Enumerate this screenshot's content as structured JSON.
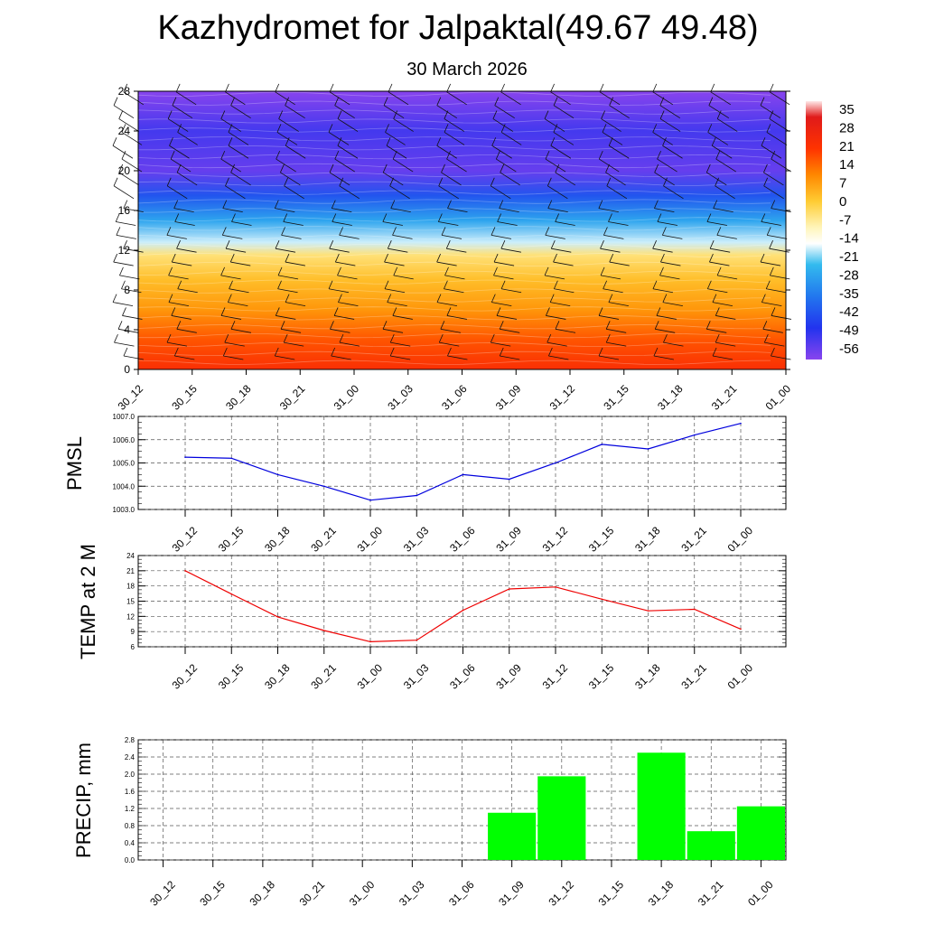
{
  "title": "Kazhydromet for Jalpaktal(49.67 49.48)",
  "subtitle": "30 March 2026",
  "time_labels": [
    "30_12",
    "30_15",
    "30_18",
    "30_21",
    "31_00",
    "31_03",
    "31_06",
    "31_09",
    "31_12",
    "31_15",
    "31_18",
    "31_21",
    "01_00"
  ],
  "chart_data": [
    {
      "type": "heatmap",
      "name": "cross-section",
      "title": "",
      "xlabel": "",
      "ylabel": "",
      "x": [
        "30_12",
        "30_15",
        "30_18",
        "30_21",
        "31_00",
        "31_03",
        "31_06",
        "31_09",
        "31_12",
        "31_15",
        "31_18",
        "31_21",
        "01_00"
      ],
      "yticks": [
        0,
        4,
        8,
        12,
        16,
        20,
        24,
        28
      ],
      "ylim": [
        0,
        28
      ],
      "colorbar_labels": [
        "35",
        "28",
        "21",
        "14",
        "7",
        "0",
        "-7",
        "-14",
        "-21",
        "-28",
        "-35",
        "-42",
        "-49",
        "-56"
      ],
      "colorbar_stops": [
        {
          "value": 38,
          "color": "#ffe8e8"
        },
        {
          "value": 32,
          "color": "#e01a1a"
        },
        {
          "value": 20,
          "color": "#ff3300"
        },
        {
          "value": 10,
          "color": "#ff8800"
        },
        {
          "value": 0,
          "color": "#ffcc33"
        },
        {
          "value": -10,
          "color": "#fff5bb"
        },
        {
          "value": -16,
          "color": "#ffffff"
        },
        {
          "value": -24,
          "color": "#33bbee"
        },
        {
          "value": -36,
          "color": "#2277ee"
        },
        {
          "value": -48,
          "color": "#2233ee"
        },
        {
          "value": -60,
          "color": "#8844ee"
        }
      ],
      "temperature_profile": [
        {
          "h": 0,
          "t": 22
        },
        {
          "h": 3,
          "t": 16
        },
        {
          "h": 6,
          "t": 8
        },
        {
          "h": 9,
          "t": 2
        },
        {
          "h": 11.5,
          "t": -5
        },
        {
          "h": 12.8,
          "t": -18
        },
        {
          "h": 15,
          "t": -28
        },
        {
          "h": 17.5,
          "t": -42
        },
        {
          "h": 20,
          "t": -56
        },
        {
          "h": 24,
          "t": -52
        },
        {
          "h": 28,
          "t": -60
        }
      ]
    },
    {
      "type": "line",
      "name": "pmsl",
      "title": "",
      "xlabel": "",
      "ylabel": "PMSL",
      "categories": [
        "30_12",
        "30_15",
        "30_18",
        "30_21",
        "31_00",
        "31_03",
        "31_06",
        "31_09",
        "31_12",
        "31_15",
        "31_18",
        "31_21",
        "01_00"
      ],
      "values": [
        1005.25,
        1005.2,
        1004.5,
        1004.0,
        1003.4,
        1003.6,
        1004.5,
        1004.3,
        1005.0,
        1005.8,
        1005.6,
        1006.2,
        1006.7
      ],
      "ylim": [
        1003.0,
        1007.0
      ],
      "yticks": [
        "1003.0",
        "1004.0",
        "1005.0",
        "1006.0",
        "1007.0"
      ],
      "color": "#0000dd"
    },
    {
      "type": "line",
      "name": "temp-2m",
      "title": "",
      "xlabel": "",
      "ylabel": "TEMP at 2 M",
      "categories": [
        "30_12",
        "30_15",
        "30_18",
        "30_21",
        "31_00",
        "31_03",
        "31_06",
        "31_09",
        "31_12",
        "31_15",
        "31_18",
        "31_21",
        "01_00"
      ],
      "values": [
        21.0,
        16.4,
        11.9,
        9.2,
        7.0,
        7.3,
        13.2,
        17.4,
        17.8,
        15.4,
        13.1,
        13.4,
        9.5
      ],
      "ylim": [
        6,
        24
      ],
      "yticks": [
        "6",
        "9",
        "12",
        "15",
        "18",
        "21",
        "24"
      ],
      "color": "#ee0000"
    },
    {
      "type": "bar",
      "name": "precip",
      "title": "",
      "xlabel": "",
      "ylabel": "PRECIP, mm",
      "categories": [
        "30_12",
        "30_15",
        "30_18",
        "30_21",
        "31_00",
        "31_03",
        "31_06",
        "31_09",
        "31_12",
        "31_15",
        "31_18",
        "31_21",
        "01_00"
      ],
      "values": [
        0,
        0,
        0,
        0,
        0,
        0,
        0,
        1.1,
        1.95,
        0,
        2.5,
        0.67,
        1.25
      ],
      "ylim": [
        0,
        2.8
      ],
      "yticks": [
        "0.0",
        "0.4",
        "0.8",
        "1.2",
        "1.6",
        "2.0",
        "2.4",
        "2.8"
      ],
      "color": "#00ff00"
    }
  ]
}
